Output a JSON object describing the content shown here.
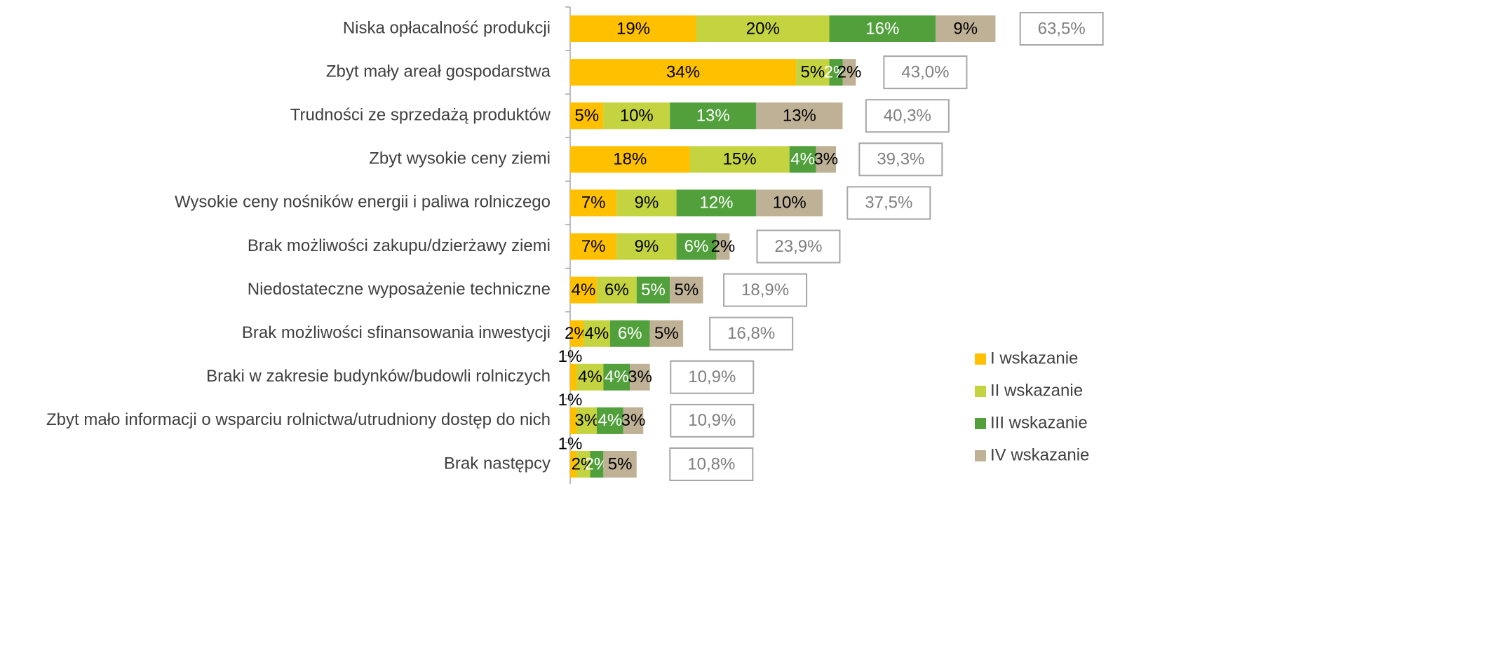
{
  "chart_data": {
    "type": "stacked_bar_horizontal",
    "categories": [
      "Niska opłacalność produkcji",
      "Zbyt mały areał gospodarstwa",
      "Trudności ze sprzedażą produktów",
      "Zbyt wysokie ceny ziemi",
      "Wysokie ceny nośników energii i paliwa rolniczego",
      "Brak możliwości zakupu/dzierżawy ziemi",
      "Niedostateczne wyposażenie techniczne",
      "Brak możliwości sfinansowania inwestycji",
      "Braki w zakresie budynków/budowli rolniczych",
      "Zbyt mało informacji o wsparciu rolnictwa/utrudniony dostęp do nich",
      "Brak następcy"
    ],
    "series": [
      {
        "name": "I wskazanie",
        "color": "#ffc000",
        "label_color": "#000000",
        "values": [
          19,
          34,
          5,
          18,
          7,
          7,
          4,
          2,
          1,
          1,
          1
        ]
      },
      {
        "name": "II wskazanie",
        "color": "#c4d340",
        "label_color": "#000000",
        "values": [
          20,
          5,
          10,
          15,
          9,
          9,
          6,
          4,
          4,
          3,
          2
        ]
      },
      {
        "name": "III wskazanie",
        "color": "#52a03c",
        "label_color": "#ffffff",
        "values": [
          16,
          2,
          13,
          4,
          12,
          6,
          5,
          6,
          4,
          4,
          2
        ]
      },
      {
        "name": "IV wskazanie",
        "color": "#bfb196",
        "label_color": "#000000",
        "values": [
          9,
          2,
          13,
          3,
          10,
          2,
          5,
          5,
          3,
          3,
          5
        ]
      }
    ],
    "totals": [
      63.5,
      43.0,
      40.3,
      39.3,
      37.5,
      23.9,
      18.9,
      16.8,
      10.9,
      10.9,
      10.8
    ],
    "total_labels": [
      "63,5%",
      "43,0%",
      "40,3%",
      "39,3%",
      "37,5%",
      "23,9%",
      "18,9%",
      "16,8%",
      "10,9%",
      "10,9%",
      "10,8%"
    ],
    "value_suffix_labels": [
      [
        "19%",
        "34%",
        "5%",
        "18%",
        "7%",
        "7%",
        "4%",
        "2%",
        "1%",
        "1%",
        "1%"
      ],
      [
        "20%",
        "5%",
        "10%",
        "15%",
        "9%",
        "9%",
        "6%",
        "4%",
        "4%",
        "3%",
        "2%"
      ],
      [
        "16%",
        "2%",
        "13%",
        "4%",
        "12%",
        "6%",
        "5%",
        "6%",
        "4%",
        "4%",
        "2%"
      ],
      [
        "9%",
        "2%",
        "13%",
        "3%",
        "10%",
        "2%",
        "5%",
        "5%",
        "3%",
        "3%",
        "5%"
      ]
    ],
    "xlim": [
      0,
      80
    ],
    "legend": "right"
  }
}
